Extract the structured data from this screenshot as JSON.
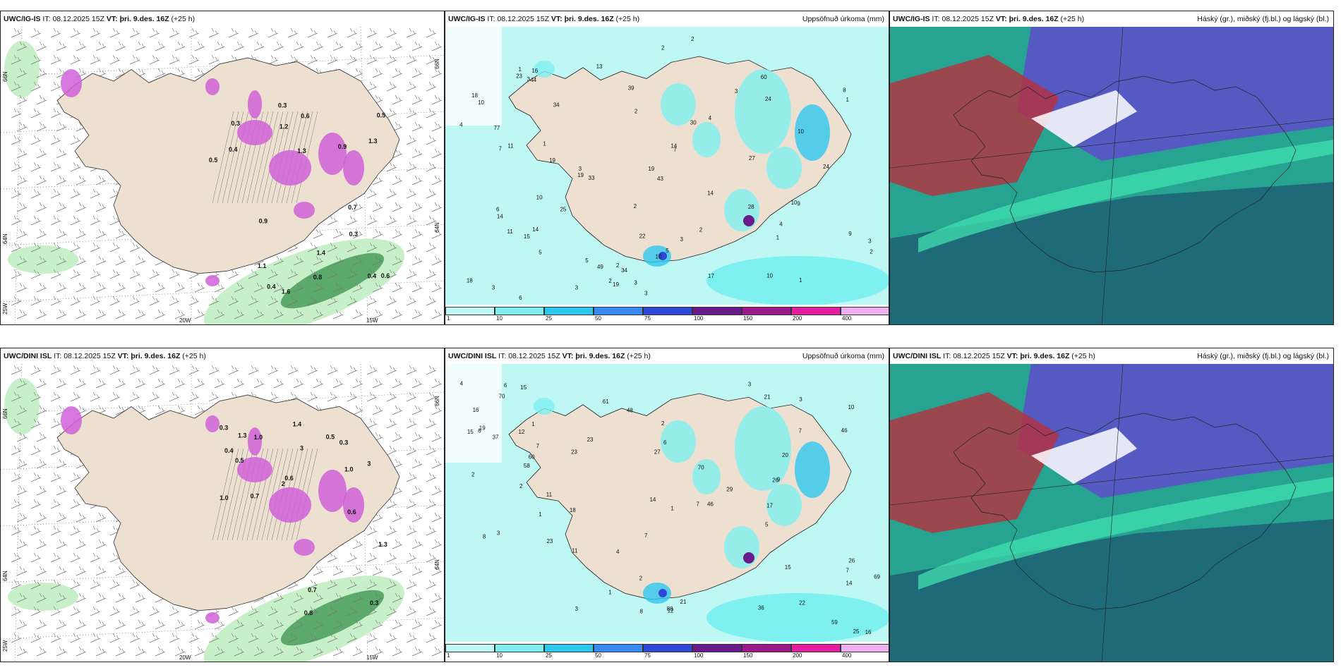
{
  "colors": {
    "land": "#ede0d0",
    "precip_light": "#bff7f5",
    "precip_mid": "#7ef0f0",
    "precip_heavy": "#2ec8ef",
    "snow_purple": "#d060d8",
    "rain_green_light": "#c8f0c8",
    "rain_green_dark": "#2e8a44",
    "cloud_high": "#5a52c8",
    "cloud_mid": "#2bb79a",
    "cloud_low": "#1f6a78",
    "cloud_mixed": "#b8303c"
  },
  "panels": [
    {
      "model": "UWC/IG-IS",
      "it_label": "IT:",
      "it_value": "08.12.2025 15Z",
      "vt_label": "VT:",
      "vt_value": "þri. 9.des. 16Z",
      "lead": "(+25 h)",
      "right_title": "",
      "lon_labels": [
        "20W",
        "15W"
      ],
      "lat_labels": [
        "66N",
        "64N",
        "25W"
      ],
      "lat_labels_right": [
        "66N",
        "64N"
      ],
      "values": [
        "0.4",
        "0.5",
        "0.6",
        "0.4",
        "1.6",
        "0.8",
        "0.4",
        "0.9",
        "1.3",
        "0.5",
        "0.3",
        "0.3",
        "0.6",
        "0.7",
        "1.2",
        "1.3",
        "0.3",
        "1.4",
        "1.1",
        "0.9"
      ]
    },
    {
      "model": "UWC/IG-IS",
      "it_label": "IT:",
      "it_value": "08.12.2025 15Z",
      "vt_label": "VT:",
      "vt_value": "þri. 9.des. 16Z",
      "lead": "(+25 h)",
      "right_title": "Uppsöfnuð úrkoma (mm)",
      "colorbar": [
        "1",
        "10",
        "25",
        "50",
        "75",
        "100",
        "150",
        "200",
        "400"
      ],
      "colorbar_colors": [
        "#bff7f5",
        "#7ef0f0",
        "#2ec8ef",
        "#3a8af0",
        "#3048d8",
        "#6a1a8a",
        "#9a1a8a",
        "#e020a0",
        "#f0b0f0"
      ],
      "values": [
        "1",
        "2",
        "3",
        "3",
        "23",
        "49",
        "5",
        "4",
        "3",
        "2",
        "2",
        "60",
        "3",
        "2",
        "1",
        "2",
        "3",
        "8",
        "10",
        "4",
        "17",
        "9",
        "19",
        "19",
        "27",
        "10",
        "19",
        "7",
        "6",
        "11",
        "5",
        "11",
        "10",
        "30",
        "39",
        "24",
        "43",
        "34",
        "33",
        "14",
        "44",
        "77",
        "9",
        "18",
        "6",
        "3",
        "4",
        "25",
        "34",
        "13",
        "19",
        "14",
        "16",
        "18",
        "5",
        "14",
        "15",
        "28",
        "10",
        "10",
        "24",
        "22",
        "14",
        "3",
        "7",
        "2",
        "2",
        "2",
        "3",
        "1",
        "1",
        "1",
        "3",
        "10"
      ]
    },
    {
      "model": "UWC/IG-IS",
      "it_label": "IT:",
      "it_value": "08.12.2025 15Z",
      "vt_label": "VT:",
      "vt_value": "þri. 9.des. 16Z",
      "lead": "(+25 h)",
      "right_title": "Háský (gr.), miðský (fj.bl.) og lágský (bl.)"
    },
    {
      "model": "UWC/DINI ISL",
      "it_label": "IT:",
      "it_value": "08.12.2025 15Z",
      "vt_label": "VT:",
      "vt_value": "þri. 9.des. 16Z",
      "lead": "(+25 h)",
      "right_title": "",
      "lon_labels": [
        "20W",
        "15W"
      ],
      "lat_labels": [
        "66N",
        "64N",
        "25W"
      ],
      "lat_labels_right": [
        "66N",
        "64N"
      ],
      "values": [
        "0.5",
        "0.8",
        "1.3",
        "3",
        "0.6",
        "0.3",
        "0.7",
        "0.3",
        "2",
        "1.3",
        "0.5",
        "1.0",
        "0.7",
        "1.4",
        "0.4",
        "0.3",
        "1.0",
        "1.0",
        "0.6",
        "3"
      ]
    },
    {
      "model": "UWC/DINI ISL",
      "it_label": "IT:",
      "it_value": "08.12.2025 15Z",
      "vt_label": "VT:",
      "vt_value": "þri. 9.des. 16Z",
      "lead": "(+25 h)",
      "right_title": "Uppsöfnuð úrkoma (mm)",
      "colorbar": [
        "1",
        "10",
        "25",
        "50",
        "75",
        "100",
        "150",
        "200",
        "400"
      ],
      "colorbar_colors": [
        "#bff7f5",
        "#7ef0f0",
        "#2ec8ef",
        "#3a8af0",
        "#3048d8",
        "#6a1a8a",
        "#9a1a8a",
        "#e020a0",
        "#f0b0f0"
      ],
      "values": [
        "1",
        "1",
        "2",
        "1",
        "46",
        "58",
        "3",
        "7",
        "6",
        "5",
        "2",
        "3",
        "3",
        "70",
        "4",
        "2",
        "1",
        "7",
        "14",
        "22",
        "12",
        "21",
        "17",
        "15",
        "26",
        "7",
        "15",
        "8",
        "6",
        "18",
        "10",
        "37",
        "60",
        "88",
        "59",
        "61",
        "70",
        "36",
        "25",
        "11",
        "29",
        "19",
        "16",
        "12",
        "14",
        "27",
        "46",
        "48",
        "69",
        "23",
        "9",
        "16",
        "6",
        "4",
        "21",
        "23",
        "23",
        "26",
        "11",
        "8",
        "7",
        "20",
        "15",
        "7",
        "3",
        "2"
      ]
    },
    {
      "model": "UWC/DINI ISL",
      "it_label": "IT:",
      "it_value": "08.12.2025 15Z",
      "vt_label": "VT:",
      "vt_value": "þri. 9.des. 16Z",
      "lead": "(+25 h)",
      "right_title": "Háský (gr.), miðský (fj.bl.) og lágský (bl.)"
    }
  ]
}
